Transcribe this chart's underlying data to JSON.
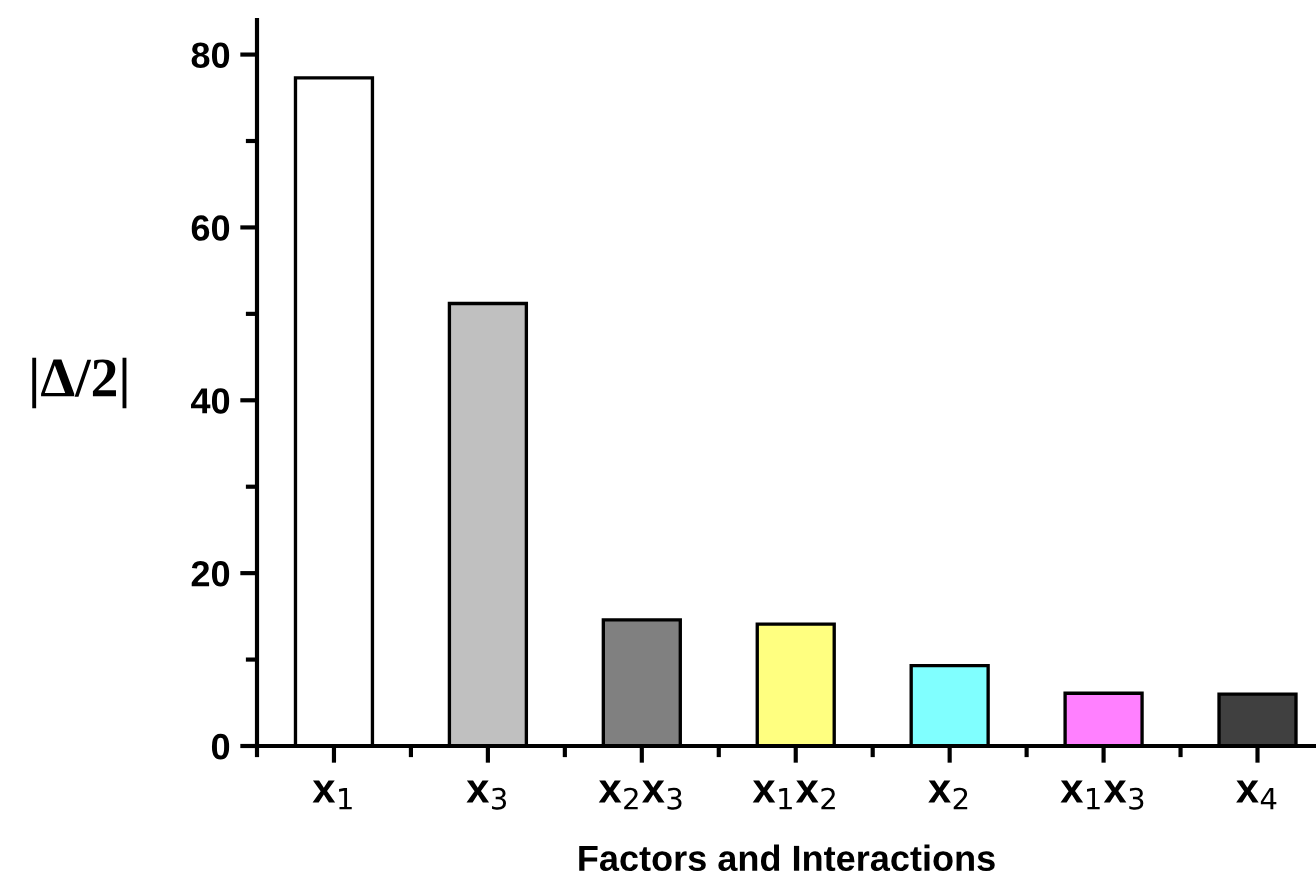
{
  "chart_data": {
    "type": "bar",
    "xlabel": "Factors and Interactions",
    "ylabel": "|Δ/2|",
    "categories": [
      "x$_{1}$",
      "x$_{3}$",
      "x$_{2}$x$_{3}$",
      "x$_{1}$x$_{2}$",
      "x$_{2}$",
      "x$_{1}$x$_{3}$",
      "x$_{4}$"
    ],
    "values": [
      77.3,
      51.2,
      14.6,
      14.1,
      9.3,
      6.1,
      6.0
    ],
    "colors": [
      "#ffffff",
      "#c0c0c0",
      "#808080",
      "#ffff80",
      "#80ffff",
      "#ff80ff",
      "#404040"
    ],
    "ylim": [
      0,
      84
    ],
    "yticks": [
      0,
      20,
      40,
      60,
      80
    ],
    "grid": false,
    "legend": false
  }
}
